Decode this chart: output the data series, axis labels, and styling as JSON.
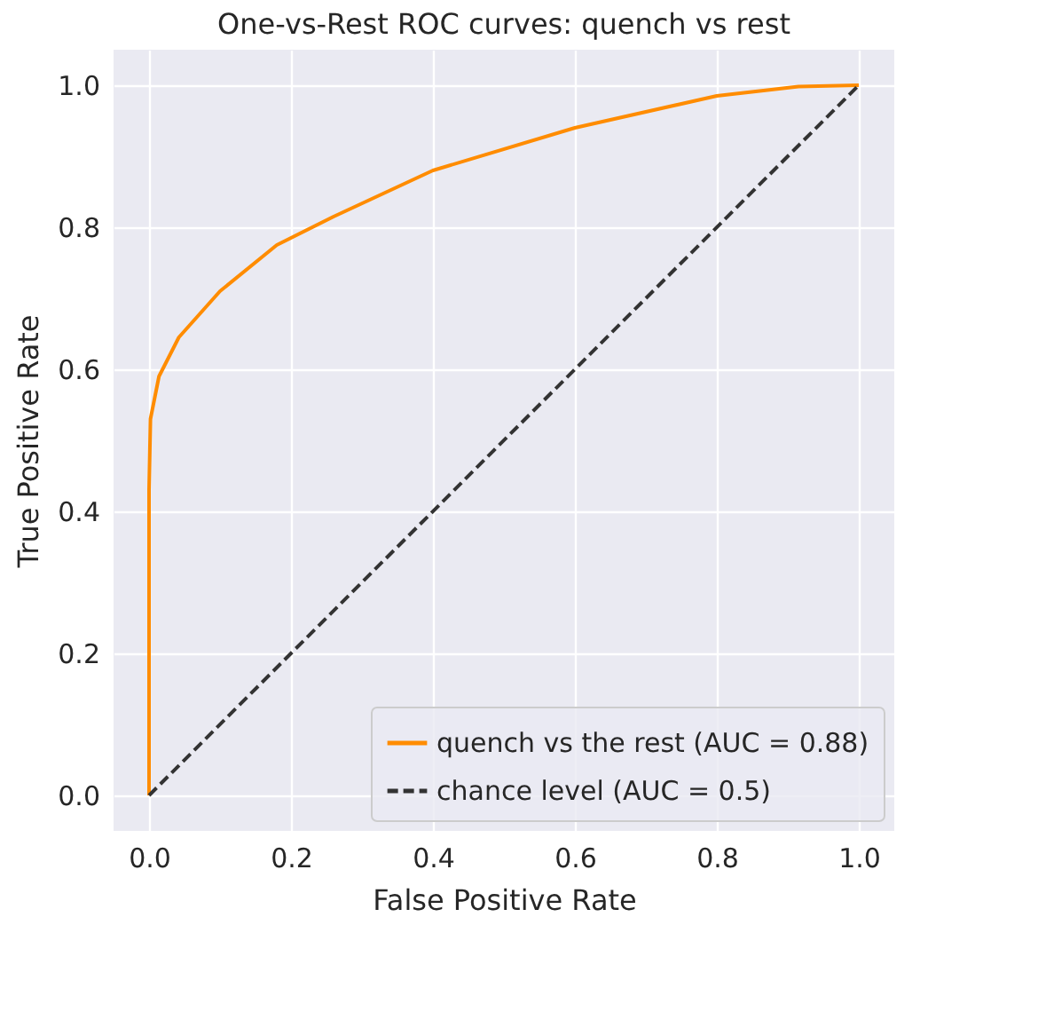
{
  "chart_data": {
    "type": "line",
    "title": "One-vs-Rest ROC curves: quench vs rest",
    "xlabel": "False Positive Rate",
    "ylabel": "True Positive Rate",
    "series": [
      {
        "name": "quench vs the rest (AUC = 0.88)",
        "color": "#ff8c00",
        "line_style": "solid",
        "x": [
          0,
          0,
          0.002,
          0.014,
          0.042,
          0.1,
          0.18,
          0.26,
          0.4,
          0.6,
          0.8,
          0.915,
          1
        ],
        "values": [
          0,
          0.43,
          0.53,
          0.59,
          0.645,
          0.71,
          0.775,
          0.815,
          0.88,
          0.94,
          0.985,
          0.998,
          1
        ]
      },
      {
        "name": "chance level (AUC = 0.5)",
        "color": "#333333",
        "line_style": "dashed",
        "x": [
          0,
          1
        ],
        "values": [
          0,
          1
        ]
      }
    ],
    "xlim": [
      -0.05,
      1.05
    ],
    "ylim": [
      -0.05,
      1.05
    ],
    "xticks": [
      {
        "value": 0,
        "label": "0.0"
      },
      {
        "value": 0.2,
        "label": "0.2"
      },
      {
        "value": 0.4,
        "label": "0.4"
      },
      {
        "value": 0.6,
        "label": "0.6"
      },
      {
        "value": 0.8,
        "label": "0.8"
      },
      {
        "value": 1,
        "label": "1.0"
      }
    ],
    "yticks": [
      {
        "value": 0,
        "label": "0.0"
      },
      {
        "value": 0.2,
        "label": "0.2"
      },
      {
        "value": 0.4,
        "label": "0.4"
      },
      {
        "value": 0.6,
        "label": "0.6"
      },
      {
        "value": 0.8,
        "label": "0.8"
      },
      {
        "value": 1,
        "label": "1.0"
      }
    ],
    "grid": true,
    "legend": "bottom right"
  }
}
